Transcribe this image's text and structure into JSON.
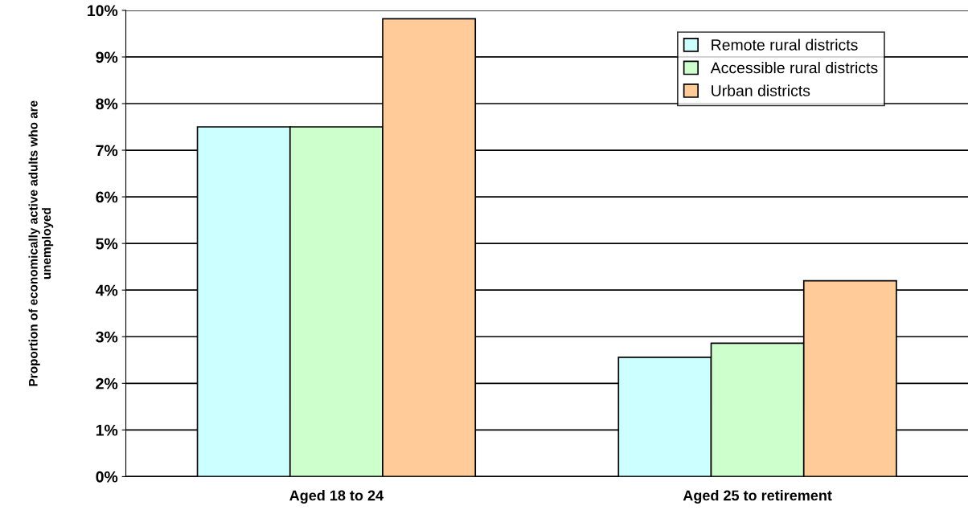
{
  "chart_data": {
    "type": "bar",
    "ylabel": "Proportion of economically active adults who are\nunemployed",
    "categories": [
      "Aged 18 to 24",
      "Aged 25 to retirement"
    ],
    "series": [
      {
        "name": "Remote rural districts",
        "color": "#ccffff",
        "values": [
          7.5,
          2.56
        ]
      },
      {
        "name": "Accessible rural districts",
        "color": "#ccffcc",
        "values": [
          7.5,
          2.86
        ]
      },
      {
        "name": "Urban districts",
        "color": "#ffcc99",
        "values": [
          9.82,
          4.2
        ]
      }
    ],
    "ylim": [
      0,
      10
    ],
    "yticks": [
      {
        "value": 0,
        "label": "0%"
      },
      {
        "value": 1,
        "label": "1%"
      },
      {
        "value": 2,
        "label": "2%"
      },
      {
        "value": 3,
        "label": "3%"
      },
      {
        "value": 4,
        "label": "4%"
      },
      {
        "value": 5,
        "label": "5%"
      },
      {
        "value": 6,
        "label": "6%"
      },
      {
        "value": 7,
        "label": "7%"
      },
      {
        "value": 8,
        "label": "8%"
      },
      {
        "value": 9,
        "label": "9%"
      },
      {
        "value": 10,
        "label": "10%"
      }
    ],
    "grid": "y",
    "legend": "top right"
  }
}
